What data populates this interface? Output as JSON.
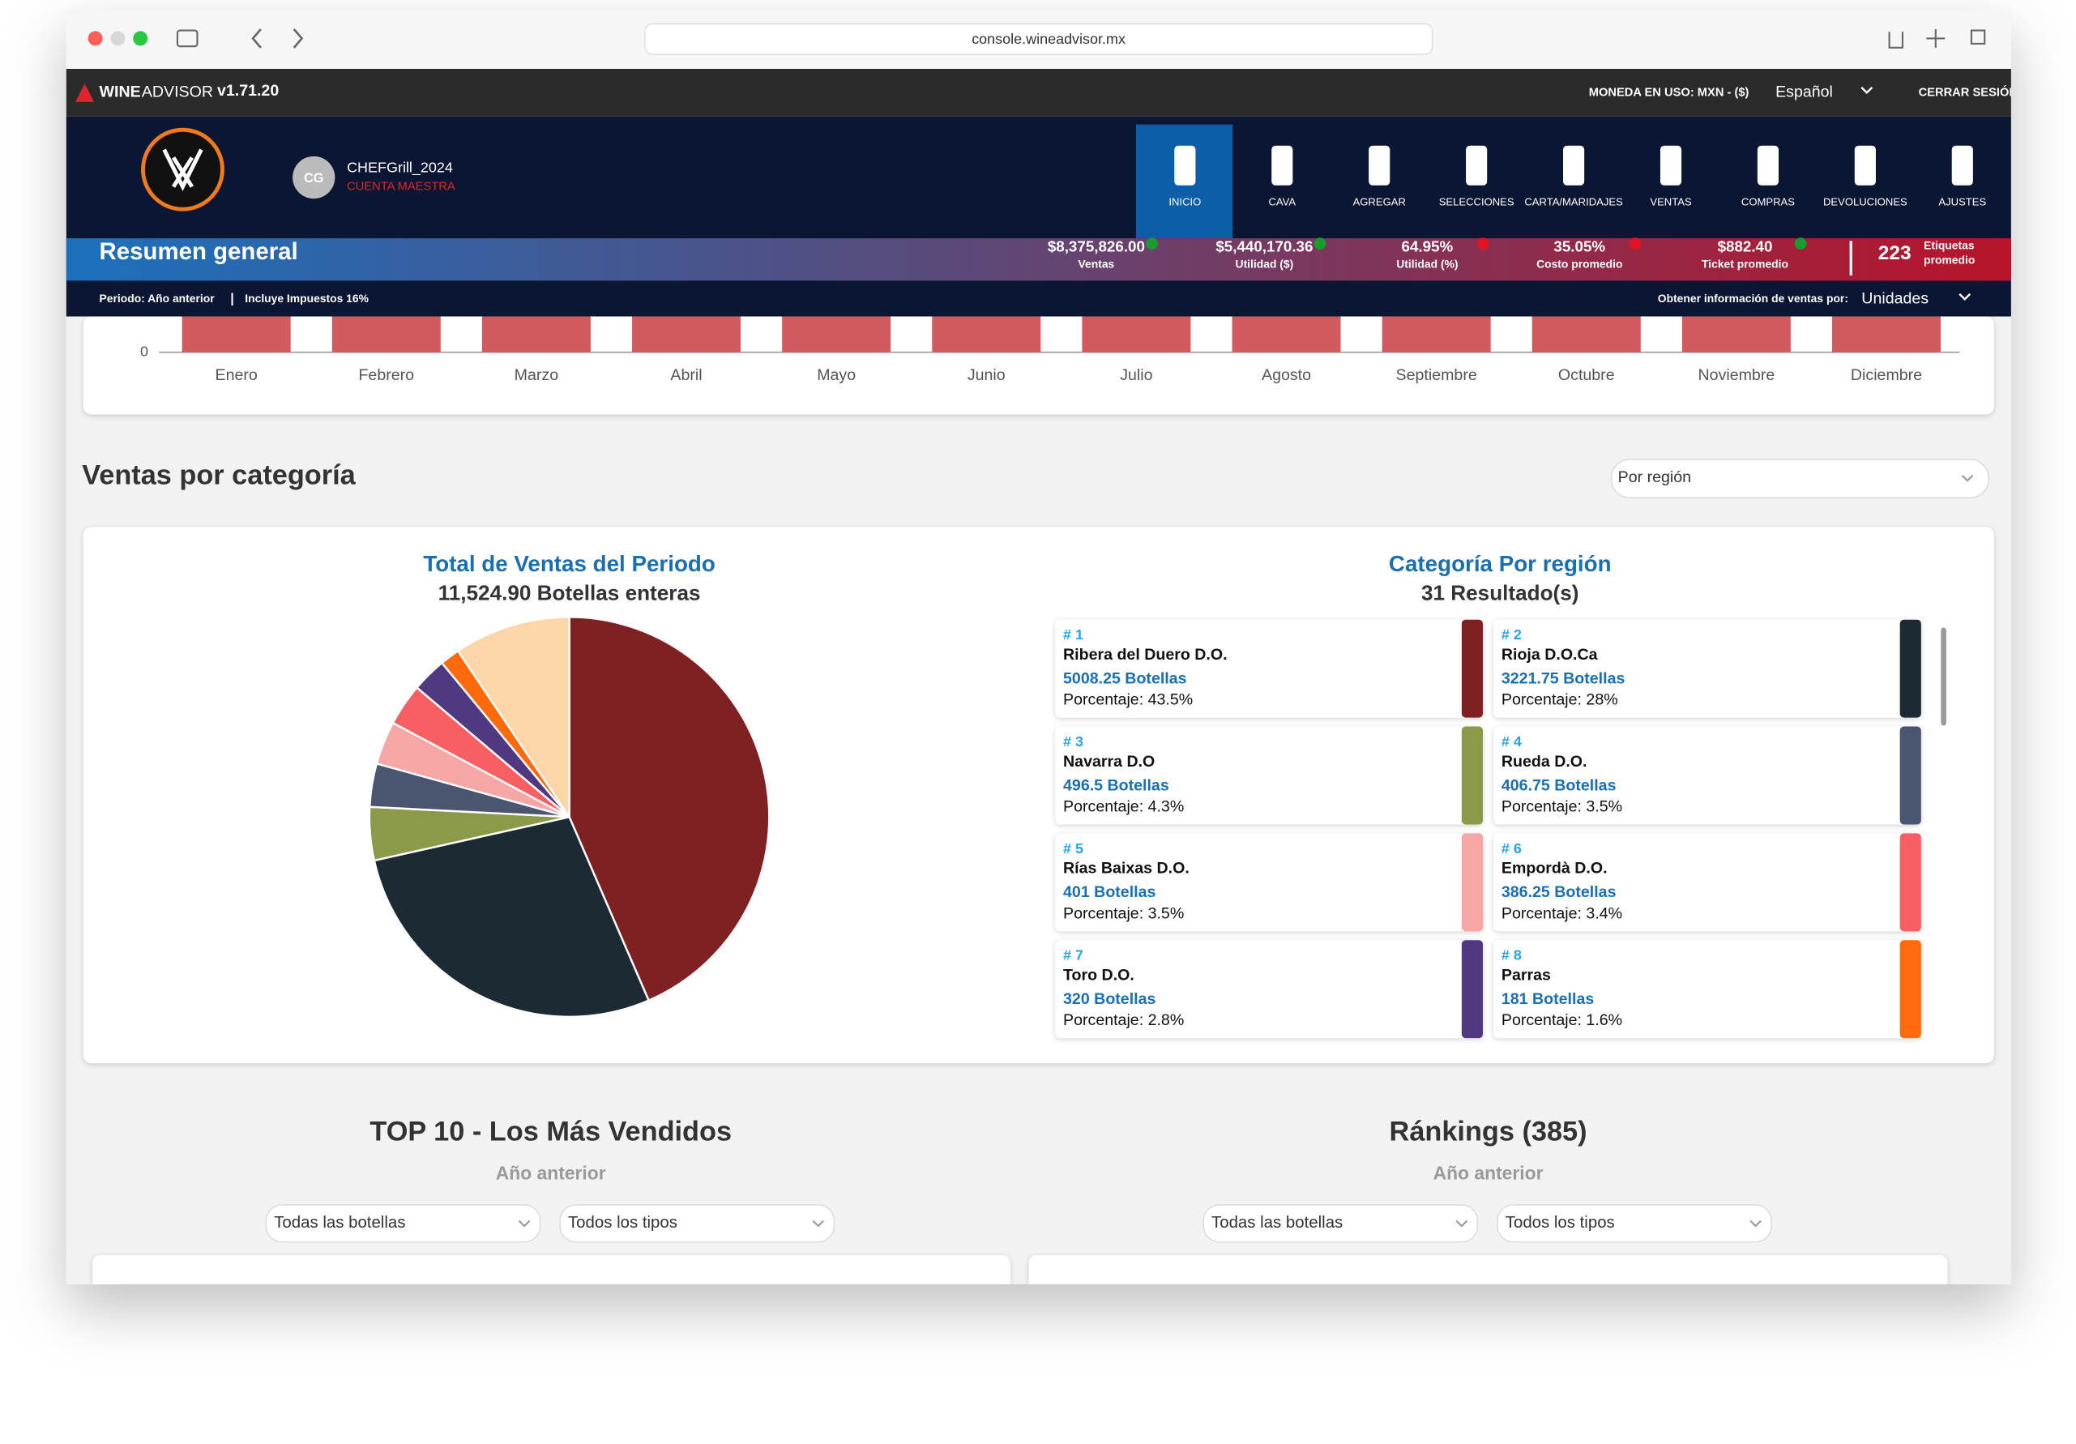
{
  "browser": {
    "url": "console.wineadvisor.mx"
  },
  "topbar": {
    "brand": "WINE",
    "brand2": "ADVISOR",
    "version": "v1.71.20",
    "currency": "MONEDA EN USO: MXN - ($)",
    "language": "Español",
    "logout": "CERRAR SESIÓN"
  },
  "user": {
    "initials": "CG",
    "name": "CHEFGrill_2024",
    "role": "CUENTA MAESTRA"
  },
  "nav": [
    "INICIO",
    "CAVA",
    "AGREGAR",
    "SELECCIONES",
    "CARTA/MARIDAJES",
    "VENTAS",
    "COMPRAS",
    "DEVOLUCIONES",
    "AJUSTES"
  ],
  "summary": {
    "title": "Resumen general",
    "stats": [
      {
        "value": "$8,375,826.00",
        "label": "Ventas",
        "status": "up"
      },
      {
        "value": "$5,440,170.36",
        "label": "Utilidad ($)",
        "status": "up"
      },
      {
        "value": "64.95%",
        "label": "Utilidad (%)",
        "status": "down"
      },
      {
        "value": "35.05%",
        "label": "Costo promedio",
        "status": "down"
      },
      {
        "value": "$882.40",
        "label": "Ticket promedio",
        "status": "up"
      }
    ],
    "labels_count": "223",
    "labels_text": [
      "Etiquetas",
      "promedio"
    ]
  },
  "filters": {
    "period": "Periodo: Año anterior",
    "separator": "|",
    "tax": "Incluye Impuestos 16%",
    "by_label": "Obtener información de ventas por:",
    "by_value": "Unidades"
  },
  "monthly": {
    "zero": "0",
    "months": [
      "Enero",
      "Febrero",
      "Marzo",
      "Abril",
      "Mayo",
      "Junio",
      "Julio",
      "Agosto",
      "Septiembre",
      "Octubre",
      "Noviembre",
      "Diciembre"
    ]
  },
  "category": {
    "title": "Ventas por categoría",
    "select": "Por región",
    "total_title": "Total de Ventas del Periodo",
    "total": "11,524.90 Botellas enteras",
    "list_title": "Categoría Por región",
    "results": "31 Resultado(s)",
    "regions": [
      {
        "rank": "# 1",
        "name": "Ribera del Duero D.O.",
        "bottles": "5008.25 Botellas",
        "percent": 43.5,
        "percent_label": "Porcentaje: 43.5%",
        "color": "#7f2023"
      },
      {
        "rank": "# 2",
        "name": "Rioja D.O.Ca",
        "bottles": "3221.75 Botellas",
        "percent": 28,
        "percent_label": "Porcentaje: 28%",
        "color": "#1b2a33"
      },
      {
        "rank": "# 3",
        "name": "Navarra D.O",
        "bottles": "496.5 Botellas",
        "percent": 4.3,
        "percent_label": "Porcentaje: 4.3%",
        "color": "#8b9a48"
      },
      {
        "rank": "# 4",
        "name": "Rueda D.O.",
        "bottles": "406.75 Botellas",
        "percent": 3.5,
        "percent_label": "Porcentaje: 3.5%",
        "color": "#4a5570"
      },
      {
        "rank": "# 5",
        "name": "Rías Baixas D.O.",
        "bottles": "401 Botellas",
        "percent": 3.5,
        "percent_label": "Porcentaje: 3.5%",
        "color": "#f7a6a6"
      },
      {
        "rank": "# 6",
        "name": "Empordà D.O.",
        "bottles": "386.25 Botellas",
        "percent": 3.4,
        "percent_label": "Porcentaje: 3.4%",
        "color": "#f75f63"
      },
      {
        "rank": "# 7",
        "name": "Toro D.O.",
        "bottles": "320 Botellas",
        "percent": 2.8,
        "percent_label": "Porcentaje: 2.8%",
        "color": "#4f3a82"
      },
      {
        "rank": "# 8",
        "name": "Parras",
        "bottles": "181 Botellas",
        "percent": 1.6,
        "percent_label": "Porcentaje: 1.6%",
        "color": "#ff6a0d"
      }
    ]
  },
  "top10": {
    "title": "TOP 10 - Los Más Vendidos",
    "subtitle": "Año anterior",
    "filters": [
      "Todas las botellas",
      "Todos los tipos"
    ]
  },
  "rankings": {
    "title": "Ránkings (385)",
    "subtitle": "Año anterior",
    "filters": [
      "Todas las botellas",
      "Todos los tipos"
    ]
  }
}
